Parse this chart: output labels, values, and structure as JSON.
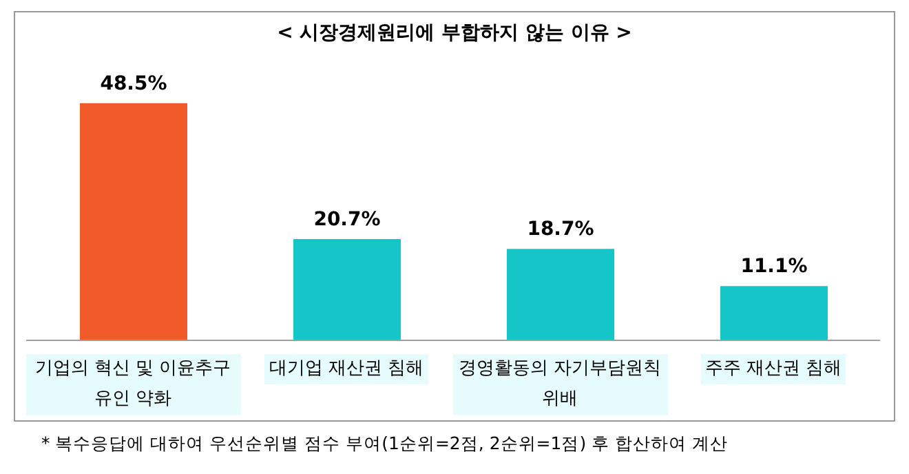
{
  "chart_data": {
    "type": "bar",
    "title": "< 시장경제원리에 부합하지 않는 이유 >",
    "categories": [
      "기업의 혁신 및 이윤추구 유인 약화",
      "대기업 재산권 침해",
      "경영활동의 자기부담원칙 위배",
      "주주 재산권 침해"
    ],
    "values": [
      48.5,
      20.7,
      18.7,
      11.1
    ],
    "colors": [
      "#f15a29",
      "#14c6c8",
      "#14c6c8",
      "#14c6c8"
    ],
    "value_labels": [
      "48.5%",
      "20.7%",
      "18.7%",
      "11.1%"
    ],
    "annotations": [
      "* 복수응답에 대하여 우선순위별 점수 부여(1순위=2점, 2순위=1점) 후 합산하여 계산"
    ]
  }
}
